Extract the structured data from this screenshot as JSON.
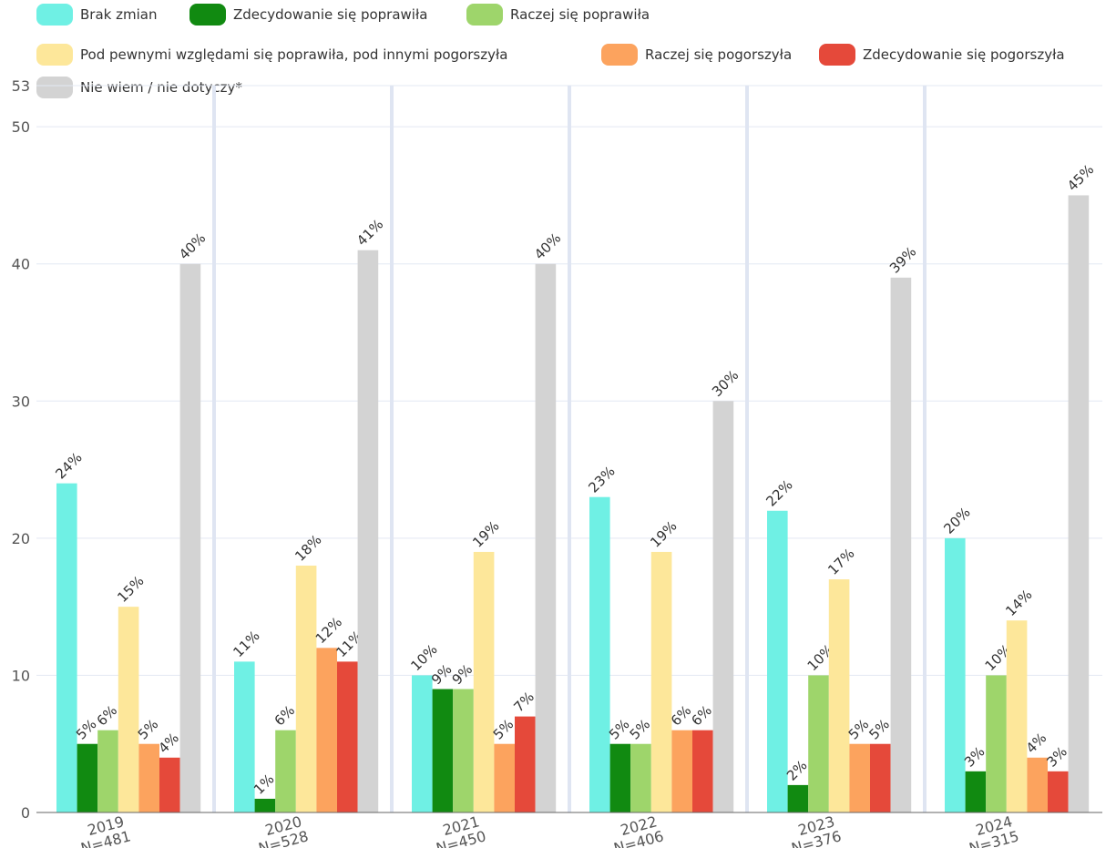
{
  "chart_data": {
    "type": "bar",
    "categories": [
      "2019",
      "2020",
      "2021",
      "2022",
      "2023",
      "2024"
    ],
    "category_subtitles": [
      "N=481",
      "N=528",
      "N=450",
      "N=406",
      "N=376",
      "N=315"
    ],
    "series": [
      {
        "name": "Brak zmian",
        "color": "#6ff0e4",
        "values": [
          24,
          11,
          10,
          23,
          22,
          20
        ]
      },
      {
        "name": "Zdecydowanie się poprawiła",
        "color": "#118a11",
        "values": [
          5,
          1,
          9,
          5,
          2,
          3
        ]
      },
      {
        "name": "Raczej się poprawiła",
        "color": "#9ed56b",
        "values": [
          6,
          6,
          9,
          5,
          10,
          10
        ]
      },
      {
        "name": "Pod pewnymi względami się poprawiła, pod innymi pogorszyła",
        "color": "#fde79a",
        "values": [
          15,
          18,
          19,
          19,
          17,
          14
        ]
      },
      {
        "name": "Raczej się pogorszyła",
        "color": "#fca35e",
        "values": [
          5,
          12,
          5,
          6,
          5,
          4
        ]
      },
      {
        "name": "Zdecydowanie się pogorszyła",
        "color": "#e5493a",
        "values": [
          4,
          11,
          7,
          6,
          5,
          3
        ]
      },
      {
        "name": "Nie wiem / nie dotyczy*",
        "color": "#d3d3d3",
        "values": [
          40,
          41,
          40,
          30,
          39,
          45
        ]
      }
    ],
    "value_suffix": "%",
    "ylim": [
      0,
      53
    ],
    "y_ticks": [
      "0",
      "10",
      "20",
      "30",
      "40",
      "50",
      "53"
    ],
    "grid": true,
    "legend_position": "top"
  }
}
